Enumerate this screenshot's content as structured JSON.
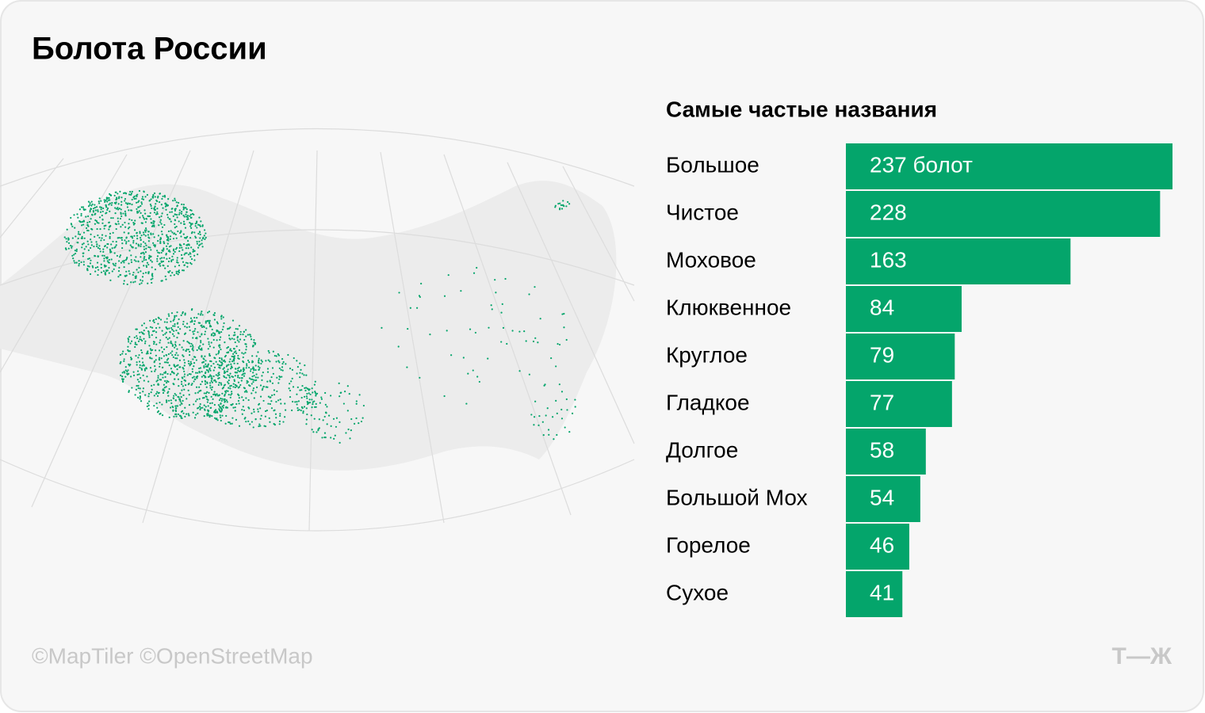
{
  "title": "Болота России",
  "footer": {
    "credits": "©MapTiler ©OpenStreetMap",
    "logo": "Т—Ж"
  },
  "chart_data": {
    "type": "bar",
    "orientation": "horizontal",
    "title": "Самые частые названия",
    "categories": [
      "Большое",
      "Чистое",
      "Моховое",
      "Клюквенное",
      "Круглое",
      "Гладкое",
      "Долгое",
      "Большой Мох",
      "Горелое",
      "Сухое"
    ],
    "values": [
      237,
      228,
      163,
      84,
      79,
      77,
      58,
      54,
      46,
      41
    ],
    "value_labels": [
      "237 болот",
      "228",
      "163",
      "84",
      "79",
      "77",
      "58",
      "54",
      "46",
      "41"
    ],
    "color": "#04a56b"
  }
}
